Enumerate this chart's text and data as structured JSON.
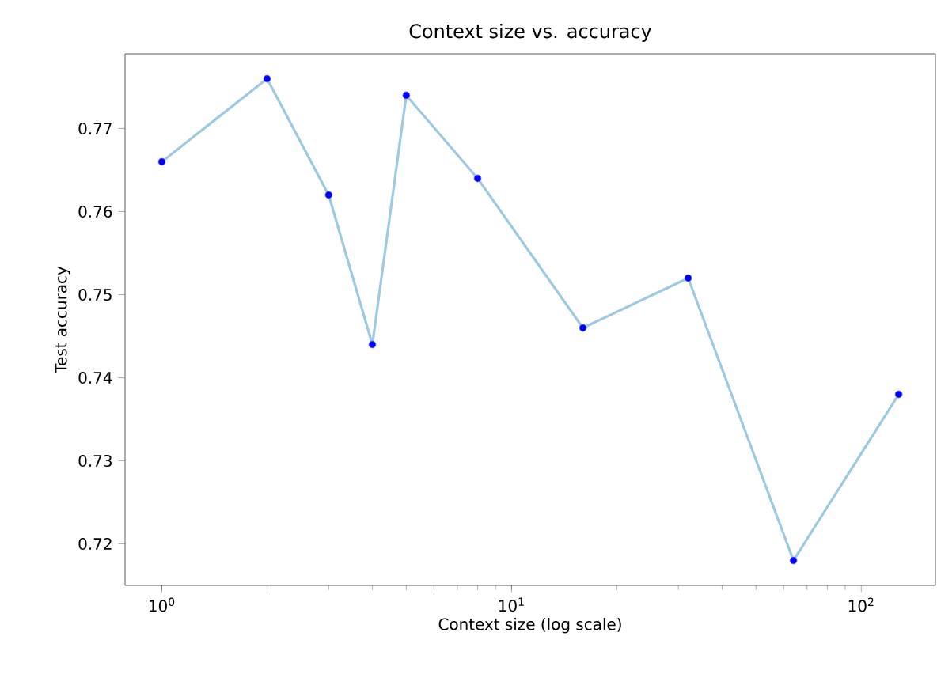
{
  "chart_data": {
    "type": "line",
    "title": "Context size vs. accuracy",
    "xlabel": "Context size (log scale)",
    "ylabel": "Test accuracy",
    "log": "x",
    "xlim": [
      0.785,
      163
    ],
    "ylim": [
      0.715,
      0.779
    ],
    "xticks": [
      {
        "value": 1,
        "label": "10$^{0}$"
      },
      {
        "value": 10,
        "label": "10$^{1}$"
      },
      {
        "value": 100,
        "label": "10$^{2}$"
      }
    ],
    "yticks": [
      0.72,
      0.73,
      0.74,
      0.75,
      0.76,
      0.77
    ],
    "grid": false,
    "series": [
      {
        "marker": "none",
        "line_style": "solid",
        "color": "#9ecae1",
        "x": [
          1,
          2,
          3,
          4,
          5,
          8,
          16,
          32,
          64,
          128
        ],
        "values": [
          0.766,
          0.776,
          0.762,
          0.744,
          0.774,
          0.764,
          0.746,
          0.752,
          0.718,
          0.738
        ]
      },
      {
        "type": "scatter",
        "marker": "circle",
        "color": "#0000ff",
        "x": [
          1,
          2,
          3,
          4,
          5,
          8,
          16,
          32,
          64,
          128
        ],
        "values": [
          0.766,
          0.776,
          0.762,
          0.744,
          0.774,
          0.764,
          0.746,
          0.752,
          0.718,
          0.738
        ]
      }
    ]
  }
}
